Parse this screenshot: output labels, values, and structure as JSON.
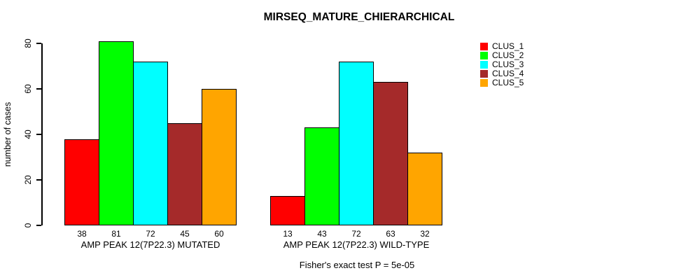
{
  "figure": {
    "title": "MIRSEQ_MATURE_CHIERARCHICAL",
    "ylabel": "number of cases",
    "caption": "Fisher's exact test P = 5e-05"
  },
  "legend": {
    "items": [
      {
        "label": "CLUS_1",
        "color": "#FF0000"
      },
      {
        "label": "CLUS_2",
        "color": "#00FF00"
      },
      {
        "label": "CLUS_3",
        "color": "#00FFFF"
      },
      {
        "label": "CLUS_4",
        "color": "#A52A2A"
      },
      {
        "label": "CLUS_5",
        "color": "#FFA500"
      }
    ]
  },
  "chart_data": {
    "type": "bar",
    "title": "MIRSEQ_MATURE_CHIERARCHICAL",
    "ylabel": "number of cases",
    "xlabel": "",
    "ylim": [
      0,
      80
    ],
    "yticks": [
      0,
      20,
      40,
      60,
      80
    ],
    "grid": false,
    "legend_position": "top-right",
    "categories": [
      "AMP PEAK 12(7P22.3) MUTATED",
      "AMP PEAK 12(7P22.3) WILD-TYPE"
    ],
    "series": [
      {
        "name": "CLUS_1",
        "color": "#FF0000",
        "values": [
          38,
          13
        ]
      },
      {
        "name": "CLUS_2",
        "color": "#00FF00",
        "values": [
          81,
          43
        ]
      },
      {
        "name": "CLUS_3",
        "color": "#00FFFF",
        "values": [
          72,
          72
        ]
      },
      {
        "name": "CLUS_4",
        "color": "#A52A2A",
        "values": [
          45,
          63
        ]
      },
      {
        "name": "CLUS_5",
        "color": "#FFA500",
        "values": [
          60,
          32
        ]
      }
    ],
    "bar_value_labels": true,
    "annotation": "Fisher's exact test P = 5e-05"
  }
}
